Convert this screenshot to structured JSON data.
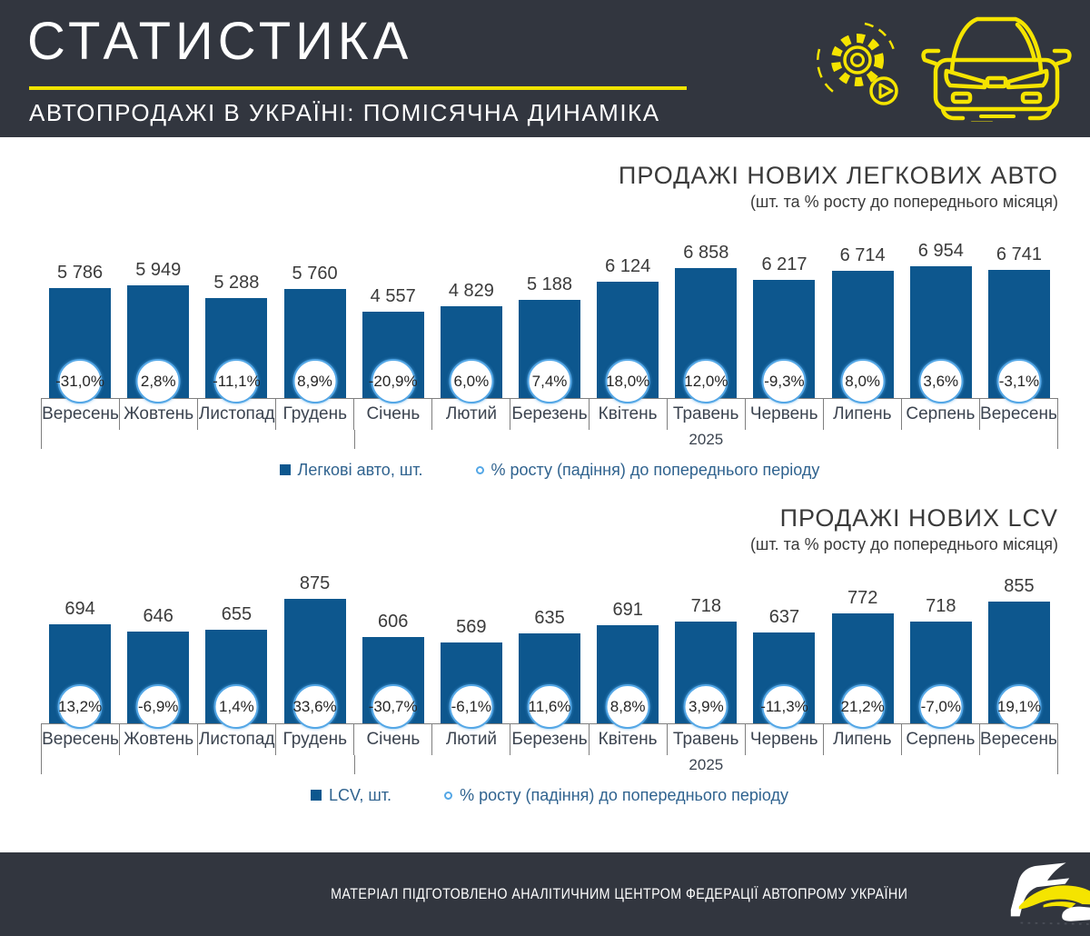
{
  "header": {
    "title": "СТАТИСТИКА",
    "subtitle": "АВТОПРОДАЖІ В УКРАЇНІ: ПОМІСЯЧНА ДИНАМІКА",
    "icons": [
      "gear-play-icon",
      "car-front-icon"
    ]
  },
  "footer": {
    "text": "МАТЕРІАЛ ПІДГОТОВЛЕНО АНАЛІТИЧНИМ ЦЕНТРОМ ФЕДЕРАЦІЇ АВТОПРОМУ УКРАЇНИ",
    "logo": "fau-brush-car-logo"
  },
  "colors": {
    "dark_background": "#32363f",
    "accent_yellow": "#f0e300",
    "bar_blue": "#0d578e",
    "circle_border_blue": "#54a7e6"
  },
  "chart_data": [
    {
      "type": "bar",
      "title": "ПРОДАЖІ НОВИХ ЛЕГКОВИХ АВТО",
      "subtitle": "(шт. та % росту до попереднього місяця)",
      "categories": [
        "Вересень",
        "Жовтень",
        "Листопад",
        "Грудень",
        "Січень",
        "Лютий",
        "Березень",
        "Квітень",
        "Травень",
        "Червень",
        "Липень",
        "Серпень",
        "Вересень"
      ],
      "values": [
        5786,
        5949,
        5288,
        5760,
        4557,
        4829,
        5188,
        6124,
        6858,
        6217,
        6714,
        6954,
        6741
      ],
      "value_labels": [
        "5 786",
        "5 949",
        "5 288",
        "5 760",
        "4 557",
        "4 829",
        "5 188",
        "6 124",
        "6 858",
        "6 217",
        "6 714",
        "6 954",
        "6 741"
      ],
      "pct_labels": [
        "-31,0%",
        "2,8%",
        "-11,1%",
        "8,9%",
        "-20,9%",
        "6,0%",
        "7,4%",
        "18,0%",
        "12,0%",
        "-9,3%",
        "8,0%",
        "3,6%",
        "-3,1%"
      ],
      "year_label": "2025",
      "year_group_start_index": 4,
      "legend": [
        "Легкові авто, шт.",
        "% росту  (падіння) до попереднього періоду"
      ],
      "ylim": [
        0,
        7200
      ],
      "grid": false,
      "legend_position": "bottom"
    },
    {
      "type": "bar",
      "title": "ПРОДАЖІ НОВИХ  LCV",
      "subtitle": "(шт. та % росту до попереднього місяця)",
      "categories": [
        "Вересень",
        "Жовтень",
        "Листопад",
        "Грудень",
        "Січень",
        "Лютий",
        "Березень",
        "Квітень",
        "Травень",
        "Червень",
        "Липень",
        "Серпень",
        "Вересень"
      ],
      "values": [
        694,
        646,
        655,
        875,
        606,
        569,
        635,
        691,
        718,
        637,
        772,
        718,
        855
      ],
      "value_labels": [
        "694",
        "646",
        "655",
        "875",
        "606",
        "569",
        "635",
        "691",
        "718",
        "637",
        "772",
        "718",
        "855"
      ],
      "pct_labels": [
        "13,2%",
        "-6,9%",
        "1,4%",
        "33,6%",
        "-30,7%",
        "-6,1%",
        "11,6%",
        "8,8%",
        "3,9%",
        "-11,3%",
        "21,2%",
        "-7,0%",
        "19,1%"
      ],
      "year_label": "2025",
      "year_group_start_index": 4,
      "legend": [
        "LCV, шт.",
        "% росту  (падіння) до попереднього періоду"
      ],
      "ylim": [
        0,
        960
      ],
      "grid": false,
      "legend_position": "bottom"
    }
  ]
}
